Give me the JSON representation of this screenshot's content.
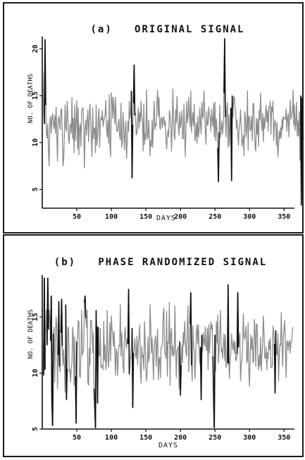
{
  "chart_data": [
    {
      "type": "line",
      "title": "(a)   ORIGINAL SIGNAL",
      "xlabel": "DAYS",
      "ylabel": "NO. OF DEATHS",
      "xlim": [
        0,
        365
      ],
      "ylim": [
        3,
        21
      ],
      "xticks": [
        50,
        100,
        150,
        200,
        250,
        300,
        350
      ],
      "xticklabels": [
        "50",
        "100",
        "150",
        "200",
        "250",
        "300",
        "350"
      ],
      "yticks": [
        5,
        10,
        15,
        20
      ],
      "yticklabels": [
        "5",
        "10",
        "15",
        "20"
      ],
      "grid": false,
      "series_color": "#8c8c8c",
      "spike_color": "#111111",
      "series": [
        {
          "x_start": 1,
          "x_step": 1,
          "values": [
            17.5,
            13,
            12,
            21,
            14,
            11,
            10.5,
            12,
            9,
            7.5,
            12.2,
            12.8,
            11,
            12.5,
            13.1,
            12,
            11.5,
            12.9,
            11,
            13.8,
            11,
            8,
            12.4,
            12.8,
            12,
            11.4,
            13.5,
            13.6,
            11.1,
            7.5,
            8.2,
            10.9,
            14,
            11.6,
            11.2,
            14.4,
            13,
            10.4,
            9.9,
            11.7,
            12,
            11,
            14.8,
            10.4,
            12.6,
            8.9,
            14,
            10.2,
            12.3,
            14.5,
            9.3,
            13.7,
            8.7,
            11.6,
            12,
            9.6,
            13.4,
            13.6,
            13.7,
            11.6,
            7.3,
            11.3,
            12.4,
            10.8,
            12.4,
            13.5,
            10.1,
            12.6,
            14.1,
            12.3,
            10.6,
            8.5,
            13.7,
            10.4,
            11.4,
            11.6,
            8.9,
            14,
            9.7,
            10.6,
            12.6,
            13.6,
            9.5,
            12.2,
            12.7,
            12.4,
            13.4,
            11.7,
            12.3,
            12.7,
            13,
            14.5,
            11.5,
            10.6,
            12.3,
            9.9,
            15.1,
            9.5,
            8.5,
            15.3,
            14.7,
            12.6,
            14.8,
            13.6,
            12,
            14.8,
            12.2,
            11.2,
            11.2,
            12.1,
            12.5,
            10.7,
            10.3,
            14.2,
            9.5,
            10,
            13.2,
            11.6,
            9.2,
            11.1,
            12.3,
            8.3,
            9.9,
            12.3,
            11.2,
            14.4,
            12.6,
            13.3,
            15.5,
            6.2,
            11.9,
            14.2,
            18.3,
            12.9,
            13.1,
            10.8,
            11,
            12.4,
            13.7,
            11.5,
            13.2,
            12.2,
            14.4,
            12.6,
            12.5,
            9.1,
            14.1,
            9.8,
            10.9,
            10.3,
            15.6,
            10.7,
            10.4,
            12.4,
            10.9,
            8.6,
            10.2,
            9.6,
            12.4,
            9.5,
            12.4,
            14.4,
            11.4,
            12,
            11.8,
            14.4,
            15.6,
            12.8,
            14.8,
            11.7,
            11.4,
            12.7,
            12.5,
            11.6,
            12.7,
            12.7,
            11.8,
            12.3,
            10.3,
            9.3,
            10.7,
            11.3,
            10.6,
            13.4,
            12.9,
            12.2,
            9.1,
            11.2,
            15.7,
            12.6,
            10.7,
            10.3,
            13.5,
            12.1,
            14.9,
            12.7,
            11.6,
            10.8,
            13.2,
            11.6,
            12.3,
            13.4,
            10.4,
            10.4,
            14.1,
            11.5,
            8.5,
            11.8,
            14.4,
            12.1,
            12.7,
            14.8,
            13.2,
            11.7,
            15.5,
            11.1,
            12.4,
            13.2,
            11.8,
            14.1,
            10.2,
            10.8,
            12.1,
            9.9,
            12.8,
            10.6,
            11.3,
            13.7,
            12,
            10.9,
            14.3,
            12.6,
            12.8,
            15.5,
            13.5,
            11.2,
            9.8,
            13.3,
            11.9,
            11.9,
            13.8,
            12.8,
            12.7,
            11.2,
            13.5,
            12.5,
            11.7,
            14.2,
            10.6,
            14.3,
            10.2,
            12.5,
            11.3,
            9.4,
            5.8,
            11.1,
            14,
            10.5,
            11.4,
            12.3,
            10.9,
            11.8,
            15.3,
            21.1,
            12.7,
            10.6,
            13.5,
            14.3,
            9.5,
            13,
            9.7,
            12.5,
            13.7,
            5.9,
            15,
            12.7,
            14.8,
            14.9,
            13.7,
            13.3,
            11.5,
            12.4,
            10.9,
            9.7,
            11.5,
            12.1,
            13.5,
            11.8,
            9.6,
            10.1,
            10.8,
            8.6,
            13.3,
            12.7,
            10.6,
            11.5,
            15.5,
            9.2,
            12.8,
            12.7,
            11.3,
            11.4,
            12.8,
            10.2,
            14.1,
            14.2,
            11.5,
            9.6,
            9.1,
            12.6,
            10.9,
            12.5,
            9.6,
            13.4,
            12.4,
            15.3,
            12.7,
            11.3,
            13.1,
            10.1,
            12.7,
            11.5,
            12.8,
            14,
            12.2,
            13.4,
            11.2,
            13.8,
            13.7,
            14.4,
            10.9,
            13.8,
            13.3,
            14.4,
            10.2,
            11.8,
            12.4,
            11.9,
            9.7,
            12.1,
            8.5,
            9.6,
            11.2,
            10.4,
            11.6,
            10.5,
            12.5,
            11.4,
            12.8,
            12.5,
            12.6,
            12.5,
            13.6,
            11.2,
            12.6,
            13.1,
            10.6,
            12.6,
            14.5,
            12.5,
            12.9,
            13.1,
            15.6,
            11.8,
            14,
            11.3,
            12,
            14.3,
            10.7,
            12.3,
            10.7,
            13.3,
            8.1,
            15,
            3.3,
            14.8,
            12.9,
            10.3
          ]
        }
      ]
    },
    {
      "type": "line",
      "title": "(b)   PHASE RANDOMIZED SIGNAL",
      "xlabel": "DAYS",
      "ylabel": "NO. OF DEATHS",
      "xlim": [
        0,
        365
      ],
      "ylim": [
        5,
        18.5
      ],
      "xticks": [
        50,
        100,
        150,
        200,
        250,
        300,
        350
      ],
      "xticklabels": [
        "50",
        "100",
        "150",
        "200",
        "250",
        "300",
        "350"
      ],
      "yticks": [
        5,
        10,
        15
      ],
      "yticklabels": [
        "5",
        "10",
        "15"
      ],
      "grid": false,
      "series_color": "#8c8c8c",
      "spike_color": "#111111",
      "series": [
        {
          "x_start": 1,
          "x_step": 1,
          "values": [
            12.8,
            9.8,
            18.5,
            10.3,
            13.9,
            15.6,
            12.5,
            18.5,
            13.9,
            15.6,
            14.7,
            12.9,
            16.9,
            7.6,
            5.3,
            13.5,
            14.1,
            9.2,
            12.9,
            15,
            14.3,
            8.6,
            11.6,
            16.4,
            10.6,
            10.1,
            13.6,
            16.6,
            12.4,
            10.7,
            12.1,
            10.5,
            8.3,
            16.1,
            7.6,
            10.4,
            13.9,
            14.1,
            10.1,
            10.3,
            9.2,
            10.5,
            10.8,
            14.1,
            13.3,
            8.9,
            13.2,
            9.7,
            5.5,
            12.8,
            13.1,
            14.7,
            14.6,
            9.8,
            9.6,
            11.7,
            15.6,
            11.6,
            11.9,
            12.2,
            16.3,
            16.9,
            14.9,
            14.1,
            15.6,
            9.1,
            8.9,
            12.2,
            10.7,
            14.7,
            14.7,
            13.9,
            11.8,
            13.6,
            8.6,
            7.2,
            5.1,
            15.6,
            14.2,
            7.3,
            14.1,
            11.6,
            11.5,
            14,
            10.5,
            10.7,
            10.6,
            10.3,
            14.6,
            11.1,
            12.5,
            10.3,
            11.1,
            15.6,
            11.5,
            10.5,
            12.4,
            14.5,
            11.1,
            15.1,
            13.9,
            13.6,
            12.4,
            13.7,
            11.8,
            9.8,
            12.2,
            11.8,
            9.8,
            11.3,
            12.5,
            12.4,
            16.1,
            11.5,
            13.6,
            12.3,
            10.6,
            10,
            13.3,
            14.1,
            12.9,
            12.2,
            13.1,
            12.6,
            17.5,
            9.9,
            10.7,
            11.5,
            12.4,
            14,
            6.9,
            11.8,
            12.2,
            13.1,
            11.6,
            11.3,
            13.3,
            10.7,
            12.7,
            13.1,
            14.3,
            10.4,
            9.1,
            12.4,
            11.4,
            11.6,
            10.3,
            14.6,
            12.7,
            10.2,
            9.3,
            10.2,
            13.2,
            11,
            11.5,
            16.1,
            14.3,
            11.8,
            13.1,
            11.4,
            9.4,
            12.3,
            12.9,
            13.3,
            10.6,
            12.6,
            13.9,
            9.4,
            11.2,
            11.4,
            9.6,
            12.3,
            12.3,
            12.8,
            15.2,
            15.8,
            11.9,
            11.7,
            11.3,
            15.5,
            9.7,
            12.8,
            12.7,
            16.3,
            8.9,
            13.5,
            14,
            11.6,
            12.4,
            11.5,
            11.7,
            16,
            12.4,
            9.6,
            12,
            12.1,
            12.4,
            8.6,
            12.8,
            8,
            10.7,
            12.5,
            10.9,
            13.6,
            12.5,
            14.6,
            13.2,
            11.8,
            11.5,
            14.4,
            16,
            10.1,
            12.2,
            14.4,
            17.2,
            10.7,
            9.3,
            14.2,
            12.4,
            12,
            9.5,
            11.1,
            13.6,
            14.3,
            12.6,
            14.3,
            12.1,
            10.8,
            12.3,
            7.6,
            13.4,
            11.9,
            13.6,
            12.8,
            12.4,
            14.1,
            12.5,
            12,
            14,
            10.3,
            14.3,
            11.8,
            13.2,
            14.6,
            13.9,
            14.3,
            11.5,
            8,
            5.1,
            13.4,
            10.2,
            14.6,
            12.7,
            15.2,
            10.9,
            12.1,
            13.8,
            15.6,
            11.9,
            12.2,
            11.3,
            12.5,
            13.5,
            11.1,
            13.4,
            10.5,
            10.8,
            10.9,
            17.9,
            10.8,
            9.5,
            11.3,
            11.9,
            13.5,
            12.6,
            12.1,
            12.9,
            11.8,
            12.8,
            11.2,
            11.1,
            11.7,
            17.2,
            12.3,
            12.8,
            13.6,
            9.3,
            10.6,
            11.2,
            12.4,
            15.3,
            13.4,
            13,
            13.5,
            14.2,
            10.9,
            11.2,
            14.5,
            10.1,
            8.8,
            11.6,
            13.4,
            12.1,
            13.2,
            10.9,
            11.1,
            14.8,
            13.7,
            10.6,
            14.4,
            14.3,
            11.3,
            10.3,
            11.6,
            10.6,
            13.2,
            10.2,
            11.6,
            12.7,
            15.1,
            13.6,
            11.3,
            11.4,
            12.3,
            10.3,
            11.8,
            11.3,
            12.9,
            12.1,
            13.1,
            10.5,
            10.5,
            10.6,
            14.2,
            13.6,
            12.6,
            8.2,
            13.8,
            11.7,
            11.6,
            13.5,
            9.3,
            11.3,
            12.6,
            12.5,
            15.4,
            12.4,
            10.6,
            13.2,
            14,
            14.7,
            11.8,
            9.6,
            12.7,
            12.9,
            12,
            12.7,
            12.9,
            11.8,
            12.8,
            12.8,
            13.8,
            14.1
          ]
        }
      ]
    }
  ]
}
